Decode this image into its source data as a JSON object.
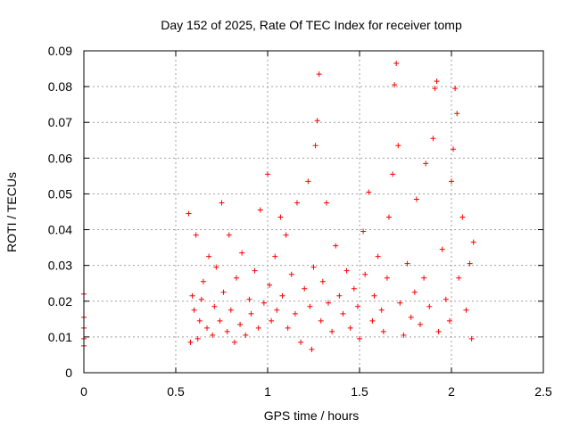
{
  "chart_data": {
    "type": "scatter",
    "title": "Day 152 of 2025, Rate Of TEC Index for receiver tomp",
    "xlabel": "GPS time / hours",
    "ylabel": "ROTI / TECUs",
    "xlim": [
      0,
      2.5
    ],
    "ylim": [
      0,
      0.09
    ],
    "xticks": [
      0,
      0.5,
      1,
      1.5,
      2,
      2.5
    ],
    "xtick_labels": [
      "0",
      "0.5",
      "1",
      "1.5",
      "2",
      "2.5"
    ],
    "yticks": [
      0,
      0.01,
      0.02,
      0.03,
      0.04,
      0.05,
      0.06,
      0.07,
      0.08,
      0.09
    ],
    "ytick_labels": [
      "0",
      "0.01",
      "0.02",
      "0.03",
      "0.04",
      "0.05",
      "0.06",
      "0.07",
      "0.08",
      "0.09"
    ],
    "grid": true,
    "legend": "none",
    "marker": "plus",
    "color": "#ff0000",
    "series": [
      {
        "points": [
          [
            0.0,
            0.022
          ],
          [
            0.0,
            0.0155
          ],
          [
            0.0,
            0.0125
          ],
          [
            0.0,
            0.0095
          ],
          [
            0.0,
            0.0075
          ],
          [
            0.57,
            0.0445
          ],
          [
            0.58,
            0.0085
          ],
          [
            0.59,
            0.0215
          ],
          [
            0.6,
            0.0175
          ],
          [
            0.61,
            0.0385
          ],
          [
            0.62,
            0.0095
          ],
          [
            0.63,
            0.0145
          ],
          [
            0.64,
            0.0205
          ],
          [
            0.65,
            0.0255
          ],
          [
            0.67,
            0.0125
          ],
          [
            0.68,
            0.0325
          ],
          [
            0.7,
            0.0105
          ],
          [
            0.71,
            0.0185
          ],
          [
            0.72,
            0.0295
          ],
          [
            0.74,
            0.0145
          ],
          [
            0.75,
            0.0475
          ],
          [
            0.76,
            0.0225
          ],
          [
            0.78,
            0.0115
          ],
          [
            0.79,
            0.0385
          ],
          [
            0.8,
            0.0175
          ],
          [
            0.82,
            0.0085
          ],
          [
            0.83,
            0.0265
          ],
          [
            0.85,
            0.0135
          ],
          [
            0.86,
            0.0335
          ],
          [
            0.88,
            0.0105
          ],
          [
            0.9,
            0.0205
          ],
          [
            0.91,
            0.0165
          ],
          [
            0.93,
            0.0285
          ],
          [
            0.95,
            0.0125
          ],
          [
            0.96,
            0.0455
          ],
          [
            0.98,
            0.0195
          ],
          [
            1.0,
            0.0555
          ],
          [
            1.01,
            0.0245
          ],
          [
            1.02,
            0.0145
          ],
          [
            1.04,
            0.0325
          ],
          [
            1.05,
            0.0175
          ],
          [
            1.07,
            0.0435
          ],
          [
            1.08,
            0.0215
          ],
          [
            1.1,
            0.0385
          ],
          [
            1.11,
            0.0125
          ],
          [
            1.13,
            0.0275
          ],
          [
            1.15,
            0.0165
          ],
          [
            1.16,
            0.0475
          ],
          [
            1.18,
            0.0085
          ],
          [
            1.2,
            0.0235
          ],
          [
            1.22,
            0.0535
          ],
          [
            1.23,
            0.0185
          ],
          [
            1.24,
            0.0065
          ],
          [
            1.25,
            0.0295
          ],
          [
            1.26,
            0.0635
          ],
          [
            1.27,
            0.0705
          ],
          [
            1.28,
            0.0835
          ],
          [
            1.29,
            0.0145
          ],
          [
            1.3,
            0.0255
          ],
          [
            1.32,
            0.0475
          ],
          [
            1.33,
            0.0195
          ],
          [
            1.35,
            0.0115
          ],
          [
            1.37,
            0.0355
          ],
          [
            1.39,
            0.0215
          ],
          [
            1.41,
            0.0165
          ],
          [
            1.43,
            0.0285
          ],
          [
            1.45,
            0.0125
          ],
          [
            1.47,
            0.0235
          ],
          [
            1.49,
            0.0185
          ],
          [
            1.5,
            0.0095
          ],
          [
            1.52,
            0.0395
          ],
          [
            1.53,
            0.0275
          ],
          [
            1.55,
            0.0505
          ],
          [
            1.57,
            0.0145
          ],
          [
            1.58,
            0.0215
          ],
          [
            1.6,
            0.0325
          ],
          [
            1.62,
            0.0175
          ],
          [
            1.63,
            0.0115
          ],
          [
            1.65,
            0.0265
          ],
          [
            1.66,
            0.0435
          ],
          [
            1.68,
            0.0555
          ],
          [
            1.69,
            0.0805
          ],
          [
            1.7,
            0.0865
          ],
          [
            1.71,
            0.0635
          ],
          [
            1.72,
            0.0195
          ],
          [
            1.74,
            0.0105
          ],
          [
            1.76,
            0.0305
          ],
          [
            1.78,
            0.0155
          ],
          [
            1.8,
            0.0225
          ],
          [
            1.81,
            0.0485
          ],
          [
            1.83,
            0.0135
          ],
          [
            1.85,
            0.0265
          ],
          [
            1.86,
            0.0585
          ],
          [
            1.88,
            0.0185
          ],
          [
            1.9,
            0.0655
          ],
          [
            1.91,
            0.0795
          ],
          [
            1.92,
            0.0815
          ],
          [
            1.93,
            0.0115
          ],
          [
            1.95,
            0.0345
          ],
          [
            1.97,
            0.0205
          ],
          [
            1.99,
            0.0145
          ],
          [
            2.0,
            0.0535
          ],
          [
            2.01,
            0.0625
          ],
          [
            2.02,
            0.0795
          ],
          [
            2.03,
            0.0725
          ],
          [
            2.04,
            0.0265
          ],
          [
            2.06,
            0.0435
          ],
          [
            2.08,
            0.0175
          ],
          [
            2.1,
            0.0305
          ],
          [
            2.11,
            0.0095
          ],
          [
            2.12,
            0.0365
          ]
        ]
      }
    ]
  }
}
